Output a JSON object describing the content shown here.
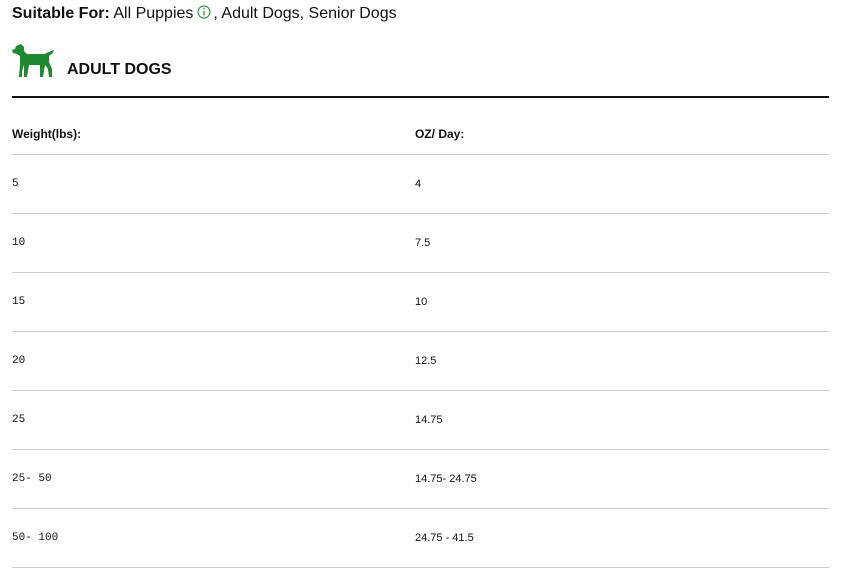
{
  "suitable": {
    "label": "Suitable For:",
    "first": "All Puppies",
    "rest": ", Adult Dogs, Senior Dogs"
  },
  "section": {
    "title": "ADULT DOGS"
  },
  "table": {
    "header": [
      "Weight(lbs):",
      "OZ/ Day:"
    ],
    "rows": [
      [
        "5",
        "4"
      ],
      [
        "10",
        "7.5"
      ],
      [
        "15",
        "10"
      ],
      [
        "20",
        "12.5"
      ],
      [
        "25",
        "14.75"
      ],
      [
        "25- 50",
        "14.75- 24.75"
      ],
      [
        "50- 100",
        "24.75 - 41.5"
      ]
    ]
  }
}
